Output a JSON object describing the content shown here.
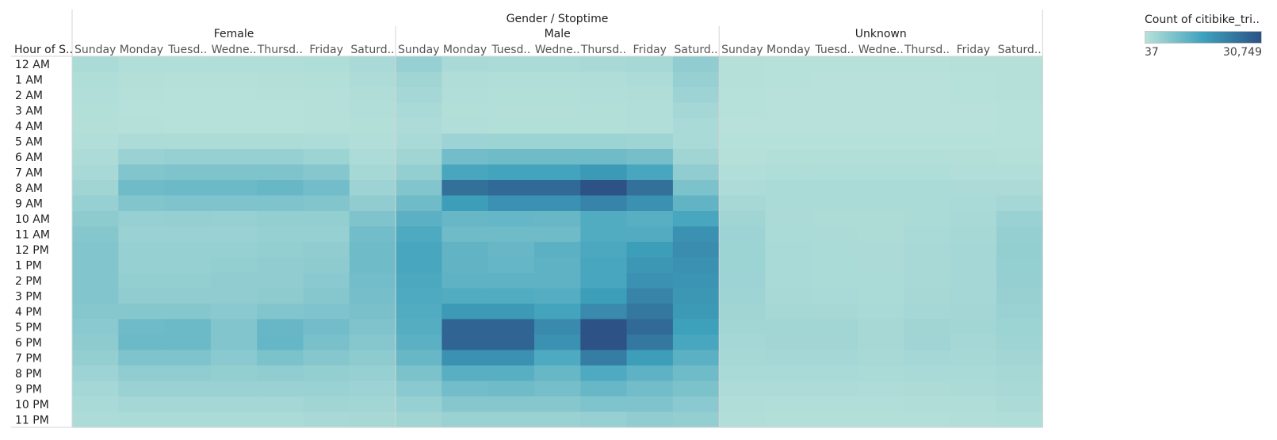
{
  "chart_data": {
    "type": "heatmap",
    "title": "Gender / Stoptime",
    "row_header": "Hour of S..",
    "rows": [
      "12 AM",
      "1 AM",
      "2 AM",
      "3 AM",
      "4 AM",
      "5 AM",
      "6 AM",
      "7 AM",
      "8 AM",
      "9 AM",
      "10 AM",
      "11 AM",
      "12 PM",
      "1 PM",
      "2 PM",
      "3 PM",
      "4 PM",
      "5 PM",
      "6 PM",
      "7 PM",
      "8 PM",
      "9 PM",
      "10 PM",
      "11 PM"
    ],
    "groups": [
      "Female",
      "Male",
      "Unknown"
    ],
    "columns": [
      "Sunday",
      "Monday",
      "Tuesd..",
      "Wedne..",
      "Thursd..",
      "Friday",
      "Saturd.."
    ],
    "legend": {
      "title": "Count of citibike_tri..",
      "min_label": "37",
      "max_label": "30,749",
      "min": 37,
      "max": 30749
    },
    "colors": {
      "low": "#b7e1da",
      "mid": "#3ea1bc",
      "high": "#2c5286"
    },
    "values": {
      "Female": [
        [
          1800,
          900,
          800,
          900,
          1000,
          1200,
          2100
        ],
        [
          1200,
          500,
          400,
          400,
          500,
          600,
          1500
        ],
        [
          900,
          300,
          250,
          250,
          300,
          400,
          1100
        ],
        [
          700,
          200,
          200,
          200,
          200,
          300,
          900
        ],
        [
          500,
          300,
          250,
          250,
          250,
          300,
          700
        ],
        [
          800,
          1500,
          1600,
          1600,
          1600,
          1400,
          800
        ],
        [
          1500,
          4500,
          5000,
          5000,
          5000,
          4200,
          1500
        ],
        [
          2200,
          8000,
          8500,
          8500,
          8500,
          7500,
          2600
        ],
        [
          3500,
          11000,
          11500,
          11500,
          12000,
          10500,
          4000
        ],
        [
          5000,
          8000,
          8500,
          8500,
          8500,
          8000,
          6000
        ],
        [
          6500,
          5000,
          5200,
          5000,
          5500,
          5500,
          8500
        ],
        [
          7500,
          4500,
          4500,
          4500,
          5000,
          5000,
          10500
        ],
        [
          8000,
          5000,
          5000,
          5000,
          5500,
          6000,
          11000
        ],
        [
          8000,
          5000,
          5000,
          5500,
          6000,
          6500,
          11000
        ],
        [
          8000,
          5500,
          5500,
          6000,
          6000,
          7000,
          10500
        ],
        [
          8000,
          6000,
          6000,
          6000,
          6500,
          7500,
          10000
        ],
        [
          7500,
          7500,
          7500,
          7000,
          8000,
          8500,
          9500
        ],
        [
          7000,
          11000,
          11500,
          8000,
          12000,
          10500,
          8500
        ],
        [
          6500,
          11500,
          11500,
          8000,
          12500,
          9500,
          7500
        ],
        [
          5500,
          8500,
          8500,
          7000,
          9000,
          7500,
          6500
        ],
        [
          4000,
          6000,
          6000,
          5500,
          6000,
          5500,
          5000
        ],
        [
          3000,
          4500,
          4500,
          4500,
          4500,
          4500,
          4000
        ],
        [
          2000,
          3000,
          3000,
          3000,
          3000,
          3500,
          3200
        ],
        [
          1500,
          1800,
          1800,
          1800,
          1800,
          2200,
          2500
        ]
      ],
      "Male": [
        [
          5000,
          2000,
          1800,
          1900,
          2200,
          2600,
          6000
        ],
        [
          3500,
          1100,
          1000,
          1000,
          1100,
          1500,
          5000
        ],
        [
          2800,
          800,
          700,
          700,
          800,
          1100,
          4000
        ],
        [
          2000,
          600,
          500,
          500,
          600,
          800,
          3000
        ],
        [
          1500,
          800,
          700,
          700,
          700,
          800,
          2000
        ],
        [
          2000,
          4000,
          4200,
          4200,
          4200,
          3800,
          2000
        ],
        [
          3500,
          10500,
          11000,
          11000,
          11000,
          10000,
          3500
        ],
        [
          5500,
          17000,
          17500,
          17500,
          19500,
          17000,
          6000
        ],
        [
          8000,
          26000,
          27000,
          27000,
          30749,
          26000,
          9000
        ],
        [
          11000,
          19000,
          21000,
          21000,
          23000,
          21000,
          13000
        ],
        [
          14000,
          12000,
          12500,
          12000,
          15500,
          14500,
          17000
        ],
        [
          16000,
          11000,
          11000,
          11000,
          15500,
          15500,
          21000
        ],
        [
          17000,
          13000,
          12000,
          14000,
          16500,
          19000,
          21500
        ],
        [
          17000,
          13000,
          12500,
          13500,
          17000,
          20000,
          21000
        ],
        [
          16500,
          13500,
          13500,
          13500,
          17000,
          21000,
          20500
        ],
        [
          16000,
          15500,
          15500,
          15000,
          19000,
          23000,
          20000
        ],
        [
          15500,
          19500,
          19500,
          17500,
          22000,
          25000,
          19500
        ],
        [
          15000,
          28000,
          28000,
          22000,
          30749,
          27000,
          18500
        ],
        [
          14000,
          28000,
          28000,
          21000,
          30749,
          25000,
          17000
        ],
        [
          12000,
          21000,
          21000,
          16000,
          24000,
          19000,
          14000
        ],
        [
          9000,
          14500,
          14500,
          12000,
          16000,
          13500,
          11000
        ],
        [
          7000,
          10500,
          11000,
          10000,
          12000,
          10500,
          9000
        ],
        [
          5000,
          7500,
          7500,
          7500,
          8500,
          8500,
          7000
        ],
        [
          3500,
          4500,
          4500,
          4500,
          5000,
          6000,
          5500
        ]
      ],
      "Unknown": [
        [
          400,
          200,
          200,
          200,
          250,
          300,
          400
        ],
        [
          300,
          150,
          100,
          100,
          100,
          200,
          350
        ],
        [
          200,
          100,
          100,
          100,
          100,
          150,
          300
        ],
        [
          150,
          100,
          80,
          80,
          80,
          100,
          200
        ],
        [
          100,
          100,
          80,
          80,
          80,
          80,
          150
        ],
        [
          150,
          200,
          200,
          200,
          200,
          200,
          150
        ],
        [
          400,
          600,
          600,
          600,
          600,
          500,
          400
        ],
        [
          800,
          1200,
          1200,
          1200,
          1200,
          1000,
          900
        ],
        [
          1500,
          1800,
          1800,
          1800,
          1900,
          1700,
          1700
        ],
        [
          2500,
          1800,
          1800,
          1800,
          1900,
          2000,
          3000
        ],
        [
          3500,
          1700,
          1600,
          1600,
          1800,
          2200,
          4500
        ],
        [
          4000,
          1800,
          1700,
          1600,
          2000,
          2600,
          5200
        ],
        [
          4200,
          2000,
          1800,
          1700,
          2200,
          2800,
          5500
        ],
        [
          4200,
          2000,
          1800,
          1700,
          2200,
          2800,
          5300
        ],
        [
          4000,
          2100,
          1900,
          1800,
          2300,
          2900,
          5100
        ],
        [
          3800,
          2200,
          2100,
          1900,
          2500,
          3000,
          4800
        ],
        [
          3600,
          2600,
          2500,
          2100,
          2800,
          3100,
          4500
        ],
        [
          3300,
          3300,
          3300,
          2500,
          3500,
          3200,
          4200
        ],
        [
          3000,
          3300,
          3300,
          2500,
          3400,
          3000,
          3800
        ],
        [
          2600,
          2800,
          2800,
          2200,
          2900,
          2700,
          3300
        ],
        [
          2000,
          2000,
          2000,
          1800,
          2100,
          2100,
          2700
        ],
        [
          1500,
          1500,
          1500,
          1400,
          1600,
          1700,
          2200
        ],
        [
          1100,
          1000,
          1000,
          1000,
          1100,
          1300,
          1700
        ],
        [
          800,
          600,
          600,
          600,
          700,
          900,
          1300
        ]
      ]
    }
  }
}
